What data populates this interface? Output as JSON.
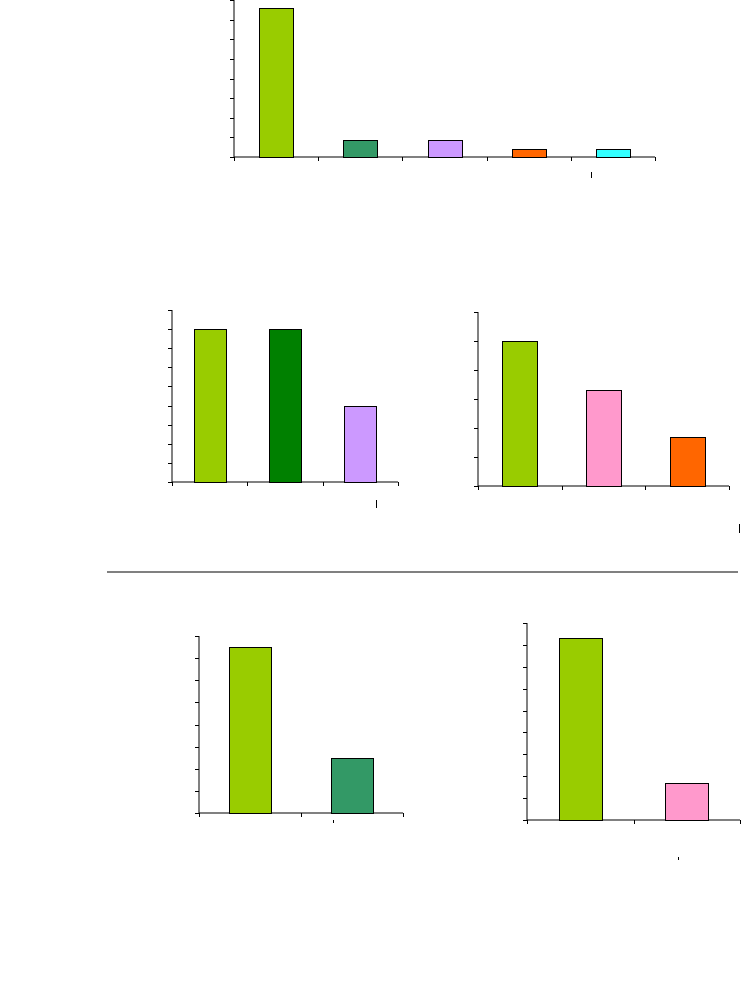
{
  "chart_data": [
    {
      "type": "bar",
      "categories": [
        "",
        "",
        "",
        "",
        ""
      ],
      "values": [
        7.6,
        0.85,
        0.85,
        0.4,
        0.4
      ],
      "ylim": [
        0,
        8
      ],
      "yticks": 8,
      "grid": false,
      "colors": [
        "#99cc00",
        "#339966",
        "#cc99ff",
        "#ff6600",
        "#33ffff"
      ]
    },
    {
      "type": "bar",
      "categories": [
        "",
        "",
        ""
      ],
      "values": [
        8.0,
        8.0,
        4.0
      ],
      "ylim": [
        0,
        9
      ],
      "yticks": 9,
      "grid": false,
      "colors": [
        "#99cc00",
        "#008000",
        "#cc99ff"
      ]
    },
    {
      "type": "bar",
      "categories": [
        "",
        "",
        ""
      ],
      "values": [
        5.0,
        3.3,
        1.7
      ],
      "ylim": [
        0,
        6
      ],
      "yticks": 6,
      "grid": false,
      "colors": [
        "#99cc00",
        "#ff99cc",
        "#ff6600"
      ]
    },
    {
      "type": "bar",
      "categories": [
        "",
        ""
      ],
      "values": [
        7.5,
        2.5
      ],
      "ylim": [
        0,
        8
      ],
      "yticks": 8,
      "grid": false,
      "colors": [
        "#99cc00",
        "#339966"
      ]
    },
    {
      "type": "bar",
      "categories": [
        "",
        ""
      ],
      "values": [
        8.3,
        1.7
      ],
      "ylim": [
        0,
        9
      ],
      "yticks": 9,
      "grid": false,
      "colors": [
        "#99cc00",
        "#ff99cc"
      ]
    }
  ]
}
